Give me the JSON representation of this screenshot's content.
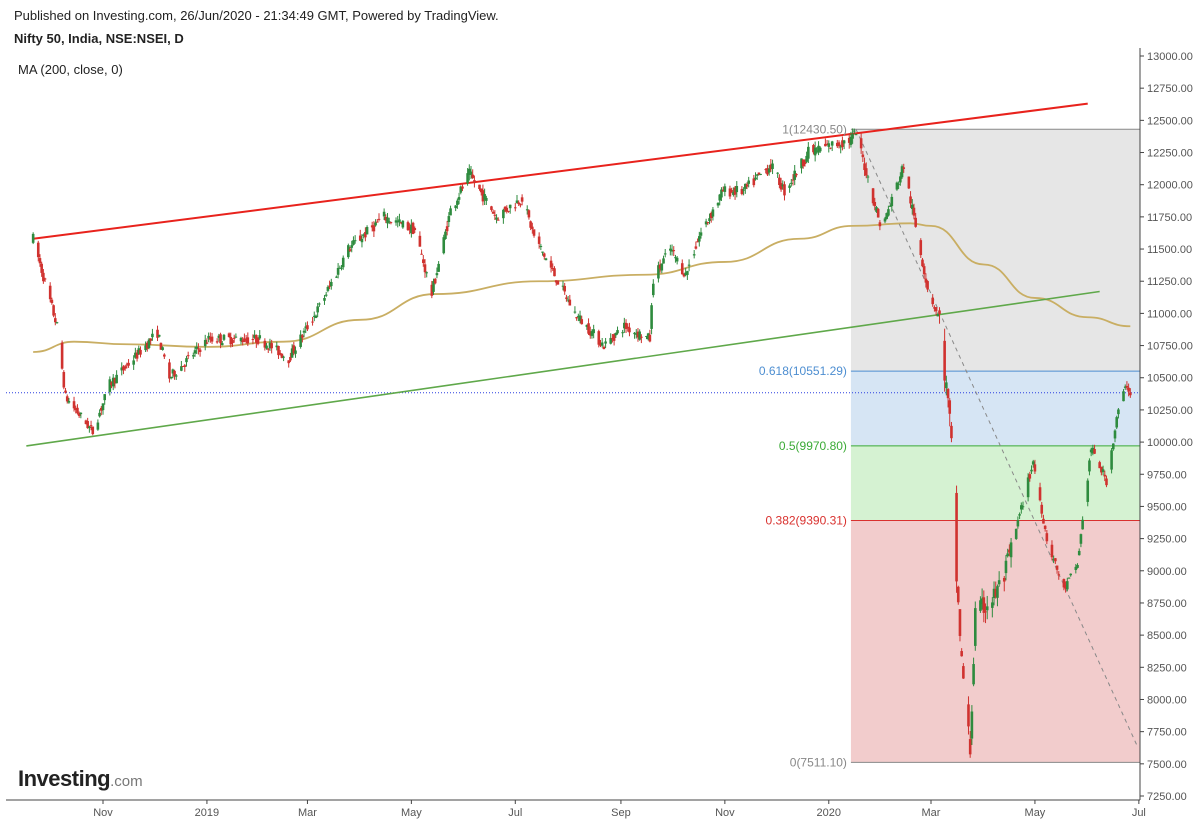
{
  "header": {
    "published": "Published on Investing.com, 26/Jun/2020 - 21:34:49 GMT, Powered by TradingView.",
    "symbol": "Nifty 50, India, NSE:NSEI, D",
    "indicator": "MA (200, close, 0)"
  },
  "logo": {
    "brand": "Investing",
    "domain": ".com"
  },
  "colors": {
    "up": "#2e8b3e",
    "down": "#d0322f",
    "resistance": "#e8221c",
    "support": "#5fa84a",
    "ma": "#c9ae63",
    "fib_top_zone": "#e6e6e6",
    "fib_blue_zone": "#d6e5f4",
    "fib_green_zone": "#d5f2d2",
    "fib_red_zone": "#f2cccc",
    "fib_0618": "#4d8ed1",
    "fib_05": "#3aaa35",
    "fib_0382": "#d9312e",
    "fib_extreme": "#888888",
    "price_line": "#2a3ee0",
    "axis_text": "#555555"
  },
  "chart_data": {
    "type": "candlestick",
    "title": "Nifty 50, India, NSE:NSEI, D",
    "y_axis": {
      "position": "right",
      "ylim": [
        7250,
        13000
      ],
      "ticks": [
        13000,
        12750,
        12500,
        12250,
        12000,
        11750,
        11500,
        11250,
        11000,
        10750,
        10500,
        10250,
        10000,
        9750,
        9500,
        9250,
        9000,
        8750,
        8500,
        8250,
        8000,
        7750,
        7500,
        7250
      ],
      "tick_labels": [
        "13000.00",
        "12750.00",
        "12500.00",
        "12250.00",
        "12000.00",
        "11750.00",
        "11500.00",
        "11250.00",
        "11000.00",
        "10750.00",
        "10500.00",
        "10250.00",
        "10000.00",
        "9750.00",
        "9500.00",
        "9250.00",
        "9000.00",
        "8750.00",
        "8500.00",
        "8250.00",
        "8000.00",
        "7750.00",
        "7500.00",
        "7250.00"
      ]
    },
    "x_axis": {
      "start": "2018-09-21",
      "end": "2020-06-26",
      "ticks": [
        {
          "date": "2018-11-01",
          "label": "Nov"
        },
        {
          "date": "2019-01-01",
          "label": "2019"
        },
        {
          "date": "2019-03-01",
          "label": "Mar"
        },
        {
          "date": "2019-05-01",
          "label": "May"
        },
        {
          "date": "2019-07-01",
          "label": "Jul"
        },
        {
          "date": "2019-09-01",
          "label": "Sep"
        },
        {
          "date": "2019-11-01",
          "label": "Nov"
        },
        {
          "date": "2020-01-01",
          "label": "2020"
        },
        {
          "date": "2020-03-01",
          "label": "Mar"
        },
        {
          "date": "2020-05-01",
          "label": "May"
        },
        {
          "date": "2020-07-01",
          "label": "Jul"
        }
      ]
    },
    "price_path": [
      [
        "2018-09-21",
        11580
      ],
      [
        "2018-10-05",
        10900
      ],
      [
        "2018-10-10",
        10350
      ],
      [
        "2018-10-26",
        10080
      ],
      [
        "2018-11-05",
        10450
      ],
      [
        "2018-12-03",
        10850
      ],
      [
        "2018-12-10",
        10500
      ],
      [
        "2019-01-02",
        10800
      ],
      [
        "2019-02-01",
        10800
      ],
      [
        "2019-02-18",
        10650
      ],
      [
        "2019-03-08",
        11050
      ],
      [
        "2019-03-25",
        11500
      ],
      [
        "2019-04-15",
        11750
      ],
      [
        "2019-05-03",
        11650
      ],
      [
        "2019-05-13",
        11150
      ],
      [
        "2019-05-24",
        11800
      ],
      [
        "2019-06-04",
        12080
      ],
      [
        "2019-06-20",
        11750
      ],
      [
        "2019-07-05",
        11900
      ],
      [
        "2019-07-12",
        11600
      ],
      [
        "2019-08-05",
        11000
      ],
      [
        "2019-08-22",
        10750
      ],
      [
        "2019-09-03",
        10900
      ],
      [
        "2019-09-18",
        10800
      ],
      [
        "2019-09-20",
        11270
      ],
      [
        "2019-09-30",
        11500
      ],
      [
        "2019-10-09",
        11300
      ],
      [
        "2019-10-17",
        11600
      ],
      [
        "2019-10-31",
        11950
      ],
      [
        "2019-11-12",
        11950
      ],
      [
        "2019-11-28",
        12150
      ],
      [
        "2019-12-06",
        11950
      ],
      [
        "2019-12-20",
        12250
      ],
      [
        "2020-01-14",
        12350
      ],
      [
        "2020-01-17",
        12400
      ],
      [
        "2020-02-01",
        11650
      ],
      [
        "2020-02-14",
        12150
      ],
      [
        "2020-02-28",
        11200
      ],
      [
        "2020-03-06",
        10950
      ],
      [
        "2020-03-12",
        10150
      ],
      [
        "2020-03-13",
        9950
      ],
      [
        "2020-03-16",
        8950
      ],
      [
        "2020-03-19",
        8300
      ],
      [
        "2020-03-24",
        7600
      ],
      [
        "2020-03-27",
        8650
      ],
      [
        "2020-04-07",
        8800
      ],
      [
        "2020-04-13",
        8950
      ],
      [
        "2020-04-30",
        9850
      ],
      [
        "2020-05-08",
        9250
      ],
      [
        "2020-05-18",
        8850
      ],
      [
        "2020-05-26",
        9050
      ],
      [
        "2020-06-03",
        9950
      ],
      [
        "2020-06-12",
        9700
      ],
      [
        "2020-06-19",
        10250
      ],
      [
        "2020-06-24",
        10450
      ],
      [
        "2020-06-26",
        10383
      ]
    ],
    "moving_average": {
      "label": "MA (200, close, 0)",
      "points": [
        [
          "2018-09-21",
          10700
        ],
        [
          "2018-10-15",
          10780
        ],
        [
          "2018-11-15",
          10760
        ],
        [
          "2019-01-01",
          10740
        ],
        [
          "2019-02-15",
          10780
        ],
        [
          "2019-04-01",
          10950
        ],
        [
          "2019-05-15",
          11150
        ],
        [
          "2019-07-15",
          11250
        ],
        [
          "2019-09-15",
          11300
        ],
        [
          "2019-11-01",
          11400
        ],
        [
          "2019-12-15",
          11580
        ],
        [
          "2020-01-15",
          11680
        ],
        [
          "2020-02-18",
          11700
        ],
        [
          "2020-03-01",
          11680
        ],
        [
          "2020-04-01",
          11380
        ],
        [
          "2020-05-01",
          11120
        ],
        [
          "2020-06-01",
          10970
        ],
        [
          "2020-06-26",
          10900
        ]
      ]
    },
    "resistance_line": {
      "from": [
        "2018-09-21",
        11580
      ],
      "to": [
        "2020-06-01",
        12630
      ]
    },
    "support_line": {
      "from": [
        "2018-09-17",
        9970
      ],
      "to": [
        "2020-06-08",
        11170
      ]
    },
    "current_price": 10383,
    "fibonacci": {
      "from_date": "2020-01-14",
      "to_date": "2020-06-26",
      "levels": [
        {
          "ratio": "1",
          "value": 12430.5,
          "label": "1(12430.50)"
        },
        {
          "ratio": "0.618",
          "value": 10551.29,
          "label": "0.618(10551.29)"
        },
        {
          "ratio": "0.5",
          "value": 9970.8,
          "label": "0.5(9970.80)"
        },
        {
          "ratio": "0.382",
          "value": 9390.31,
          "label": "0.382(9390.31)"
        },
        {
          "ratio": "0",
          "value": 7511.1,
          "label": "0(7511.10)"
        }
      ],
      "trend_line": {
        "from": [
          "2020-01-17",
          12430.5
        ],
        "to": [
          "2020-06-30",
          7640
        ]
      }
    }
  }
}
